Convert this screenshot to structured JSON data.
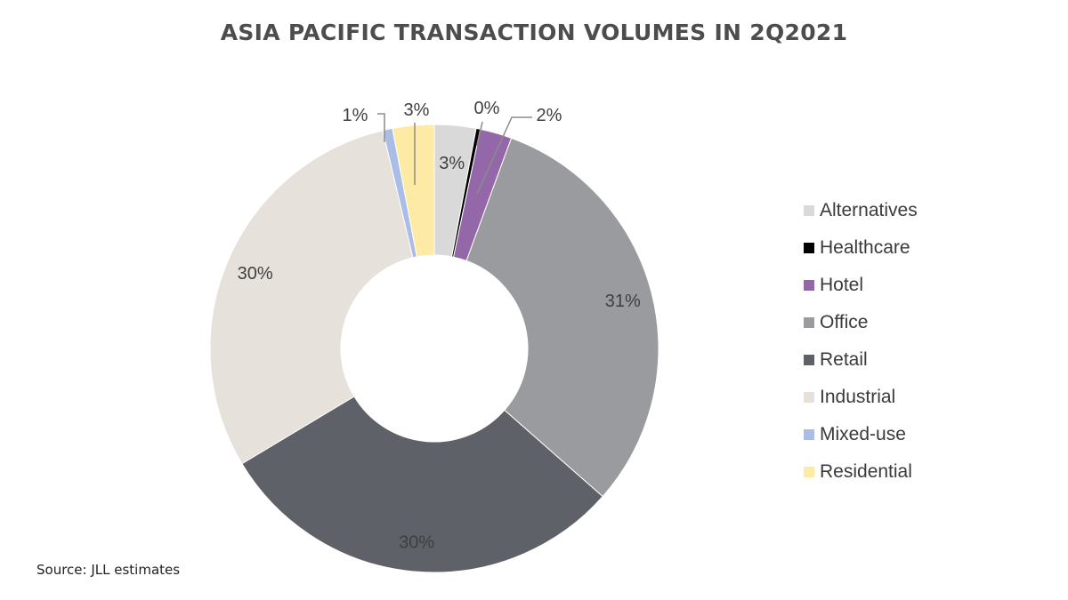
{
  "chart_data": {
    "type": "pie",
    "variant": "donut",
    "title": "ASIA PACIFIC TRANSACTION VOLUMES IN 2Q2021",
    "unit": "%",
    "categories": [
      "Alternatives",
      "Healthcare",
      "Hotel",
      "Office",
      "Retail",
      "Industrial",
      "Mixed-use",
      "Residential"
    ],
    "values": [
      3,
      0.3,
      2.3,
      31,
      30,
      30,
      0.7,
      3
    ],
    "data_labels": [
      "3%",
      "0%",
      "2%",
      "31%",
      "30%",
      "30%",
      "1%",
      "3%"
    ],
    "colors": [
      "#d9d9d9",
      "#000000",
      "#9467a8",
      "#9a9b9e",
      "#5e6167",
      "#e6e1da",
      "#a9bde6",
      "#fdeaa4"
    ],
    "legend_position": "right"
  },
  "source_note": "Source:  JLL estimates"
}
